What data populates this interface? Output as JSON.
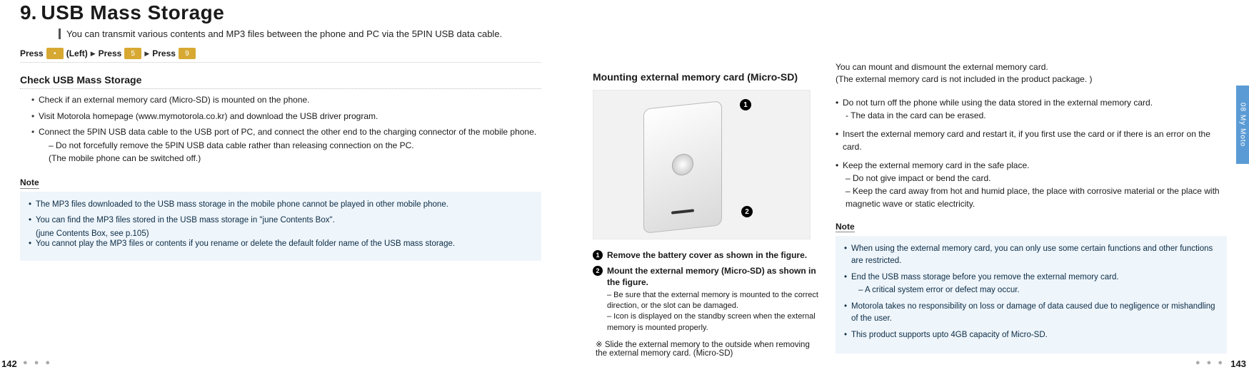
{
  "header": {
    "number": "9.",
    "title": "USB Mass Storage",
    "subtitle": "You can transmit various contents and MP3 files between the phone and PC via the 5PIN USB data cable."
  },
  "press": {
    "press": "Press",
    "left": " (Left) ",
    "tri": "▶",
    "press2": "Press",
    "press3": "Press"
  },
  "left": {
    "section": "Check USB Mass Storage",
    "b1": "Check if an external memory card (Micro-SD) is mounted on the phone.",
    "b2": "Visit Motorola homepage (www.mymotorola.co.kr) and download the USB driver program.",
    "b3": "Connect the 5PIN USB data cable to the USB port of PC, and connect the other end to the charging connector of the mobile phone.",
    "b3s1": "– Do not forcefully remove the 5PIN USB data cable rather than releasing connection on the PC.",
    "b3s2": "  (The mobile phone can be switched off.)",
    "noteHdr": "Note",
    "n1": "The MP3 files downloaded to the USB mass storage in the mobile phone cannot be played in other mobile phone.",
    "n2": "You can find the MP3 files stored in the USB mass storage in \"june Contents Box\".",
    "n2s": "(june Contents Box, see p.105)",
    "n3": "You cannot play the MP3 files or contents if you rename or delete the default folder name of the USB mass storage."
  },
  "mid": {
    "hdr": "Mounting external memory card (Micro-SD)",
    "s1": "Remove the battery cover as shown in the figure.",
    "s2": "Mount the external memory (Micro-SD) as shown in the figure.",
    "s2a": "– Be sure that the external memory is mounted to the correct direction, or the slot can be damaged.",
    "s2b": "– Icon is displayed on the standby screen when the external memory is mounted properly.",
    "ext": "※ Slide the external memory to the outside when removing the external memory card. (Micro-SD)"
  },
  "right": {
    "intro1": "You can mount and dismount the external memory card.",
    "intro2": "(The external memory card is not included in the product package. )",
    "b1": "Do not turn off the phone while using the data stored in the external memory card.",
    "b1s": "- The data in the card can be erased.",
    "b2": "Insert the external memory card and restart it, if you first use the card or if there is an error on the card.",
    "b3": "Keep the external memory card in the safe place.",
    "b3s1": "– Do not give impact or bend the card.",
    "b3s2": "– Keep the card away from hot and humid place, the place with corrosive material or the place with magnetic wave or static electricity.",
    "noteHdr": "Note",
    "n1": "When using the external memory card, you can only use some certain functions and other functions are restricted.",
    "n2": "End the USB mass storage before you remove the external memory card.",
    "n2s": "– A critical system error or defect may occur.",
    "n3": "Motorola takes no responsibility on loss or damage of data caused due to negligence or mishandling of the user.",
    "n4": "This product supports upto 4GB capacity of Micro-SD."
  },
  "footer": {
    "leftPage": "142",
    "rightPage": "143",
    "sideTab": "08  My Moto"
  },
  "colors": {
    "accent": "#5b9bd5",
    "key": "#d7a933",
    "noteBg": "#eef5fb"
  }
}
